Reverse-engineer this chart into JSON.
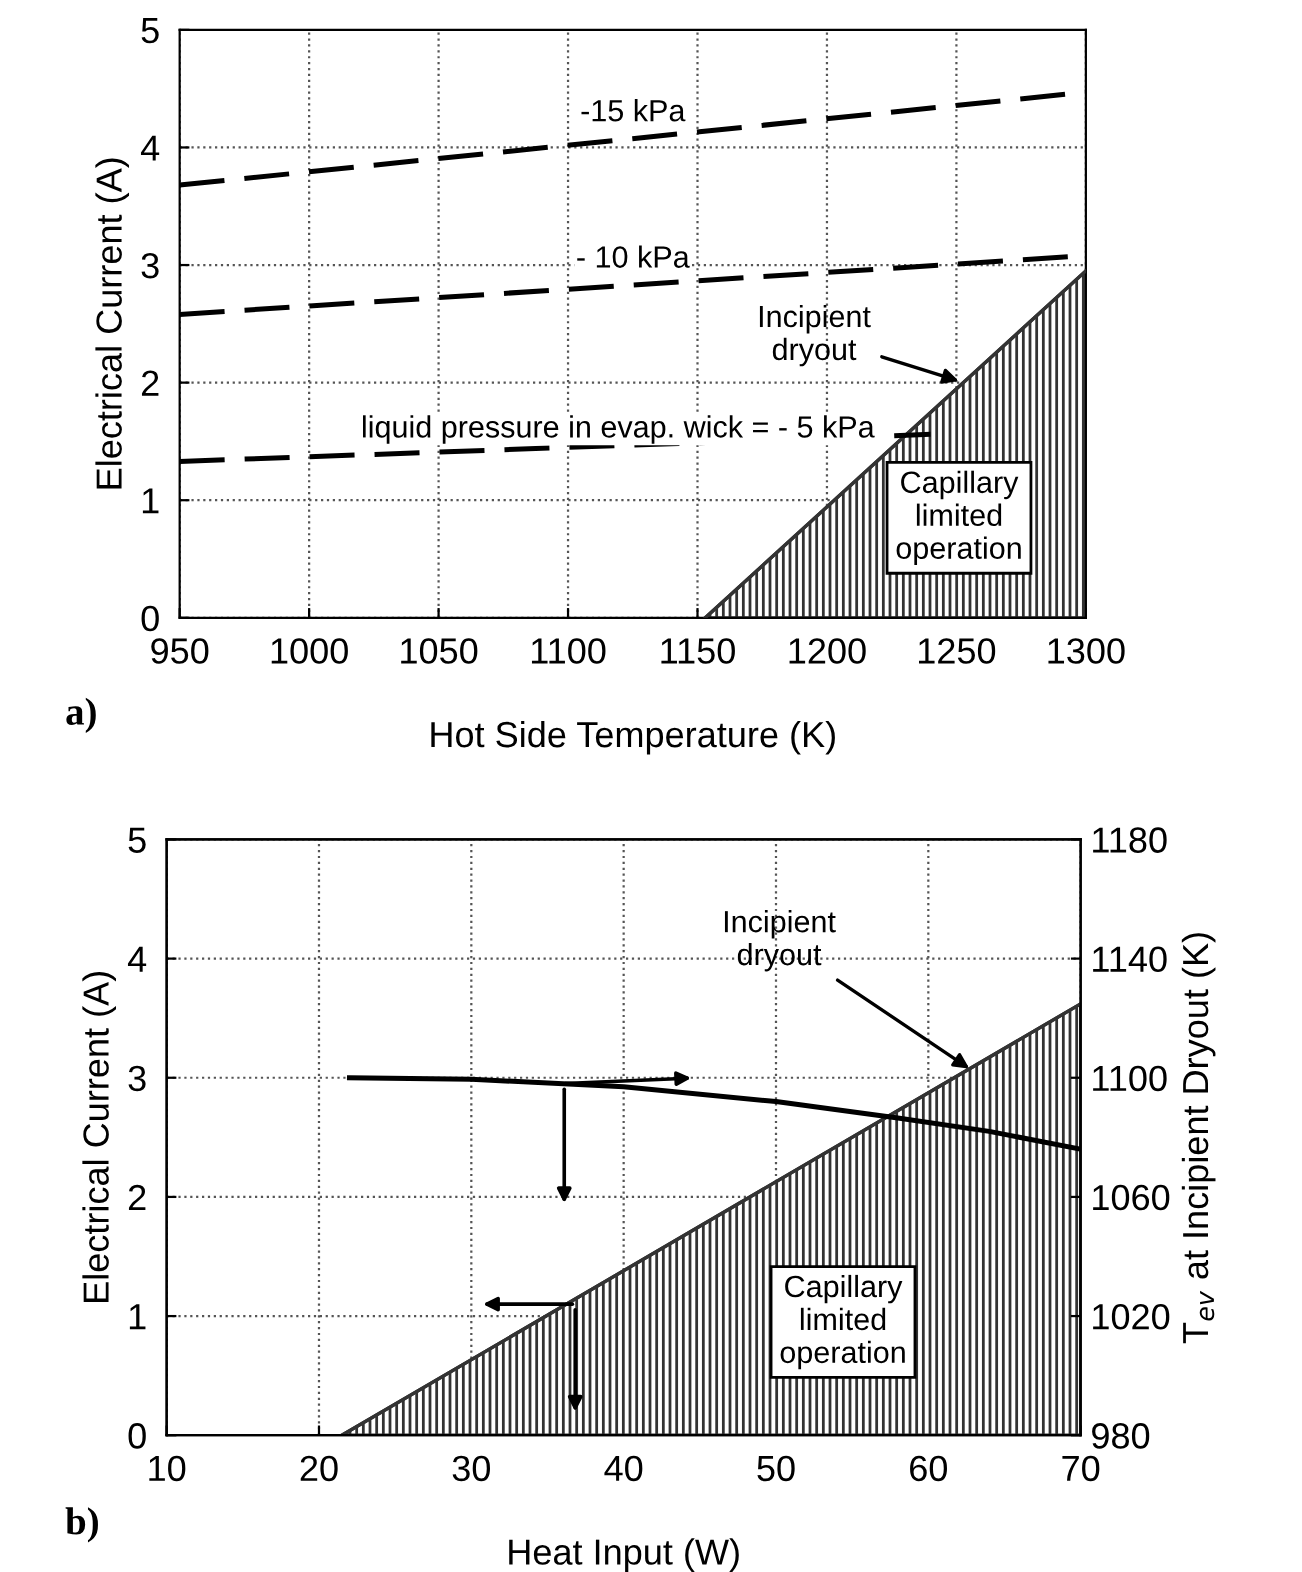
{
  "chart_data": [
    {
      "type": "line",
      "xlabel": "Hot Side Temperature (K)",
      "ylabel": "Electrical Current (A)",
      "xlim": [
        950,
        1300
      ],
      "ylim": [
        0,
        5
      ],
      "xticks": [
        950,
        1000,
        1050,
        1100,
        1150,
        1200,
        1250,
        1300
      ],
      "yticks": [
        0,
        1,
        2,
        3,
        4,
        5
      ],
      "grid": true,
      "series": [
        {
          "name": "-15 kPa",
          "color": "#000000",
          "line_style": "dashed",
          "x": [
            950,
            1300
          ],
          "values": [
            3.68,
            4.47
          ]
        },
        {
          "name": "- 10 kPa",
          "color": "#000000",
          "line_style": "dashed",
          "x": [
            950,
            1300
          ],
          "values": [
            2.58,
            3.08
          ]
        },
        {
          "name": "liquid pressure in evap. wick = - 5 kPa",
          "color": "#000000",
          "line_style": "dashed",
          "x": [
            950,
            1240
          ],
          "values": [
            1.33,
            1.56
          ]
        },
        {
          "type": "area",
          "color": "#333333",
          "x": [
            1153,
            1300
          ],
          "values": [
            0,
            2.95
          ]
        }
      ],
      "annotations": [
        {
          "text": "Incipient\ndryout",
          "x": 1253,
          "y": 2.0
        },
        "Capillary\nlimited\noperation",
        "a)"
      ]
    },
    {
      "type": "line",
      "xlabel": "Heat Input (W)",
      "ylabel": "Electrical Current (A)",
      "y2label": "T$_{ev}$ at Incipient Dryout (K)",
      "xlim": [
        10,
        70
      ],
      "ylim": [
        0,
        5
      ],
      "y2lim": [
        980,
        1180
      ],
      "xticks": [
        10,
        20,
        30,
        40,
        50,
        60,
        70
      ],
      "yticks": [
        0,
        1,
        2,
        3,
        4,
        5
      ],
      "y2ticks": [
        980,
        1020,
        1060,
        1100,
        1140,
        1180
      ],
      "grid": true,
      "series": [
        {
          "type": "area",
          "color": "#333333",
          "x": [
            21.5,
            70
          ],
          "values": [
            0,
            3.62
          ]
        },
        {
          "color": "#000000",
          "line_style": "solid",
          "axis": "y2",
          "x": [
            22,
            30,
            40,
            50,
            58,
            64,
            70
          ],
          "values": [
            1100,
            1099.5,
            1097,
            1092,
            1086.5,
            1082,
            1076
          ]
        }
      ],
      "annotations": [
        {
          "text": "Incipient\ndryout",
          "x": 63,
          "y": 3.05
        },
        "Capillary\nlimited\noperation",
        "b)"
      ]
    }
  ]
}
